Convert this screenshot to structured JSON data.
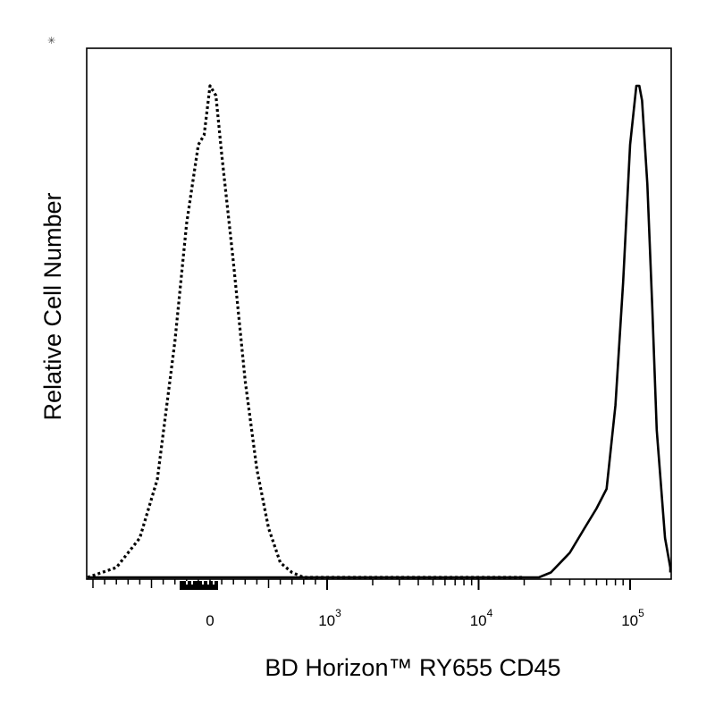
{
  "chart_data": {
    "type": "line",
    "title": "",
    "xlabel": "BD Horizon™ RY655 CD45",
    "ylabel": "Relative Cell Number",
    "x_scale": "biexponential",
    "x_ticks": [
      {
        "value": 0,
        "base": "0",
        "exp": ""
      },
      {
        "value": 1000,
        "base": "10",
        "exp": "3"
      },
      {
        "value": 10000,
        "base": "10",
        "exp": "4"
      },
      {
        "value": 100000,
        "base": "10",
        "exp": "5"
      }
    ],
    "xlim": [
      -1400,
      260000
    ],
    "ylim": [
      0,
      1
    ],
    "grid": false,
    "legend": "none",
    "series": [
      {
        "style": "dotted",
        "x": [
          -1050,
          -800,
          -600,
          -450,
          -300,
          -200,
          -100,
          -50,
          0,
          50,
          100,
          200,
          300,
          400,
          500,
          600,
          700,
          800,
          1000,
          2000,
          5000,
          10000,
          20000
        ],
        "y": [
          0.0,
          0.02,
          0.08,
          0.2,
          0.48,
          0.72,
          0.88,
          0.9,
          1.0,
          0.98,
          0.86,
          0.64,
          0.4,
          0.22,
          0.1,
          0.03,
          0.01,
          0.0,
          0.0,
          0.0,
          0.0,
          0.0,
          0.0
        ]
      },
      {
        "style": "solid",
        "x": [
          -1400,
          0,
          1000,
          10000,
          25000,
          30000,
          40000,
          50000,
          60000,
          70000,
          80000,
          90000,
          100000,
          110000,
          115000,
          120000,
          130000,
          140000,
          150000,
          170000,
          200000,
          240000
        ],
        "y": [
          0.0,
          0.0,
          0.0,
          0.0,
          0.0,
          0.01,
          0.05,
          0.1,
          0.14,
          0.18,
          0.35,
          0.6,
          0.88,
          1.0,
          1.0,
          0.97,
          0.8,
          0.55,
          0.3,
          0.08,
          0.02,
          0.01
        ]
      }
    ],
    "colors": {
      "line": "#000000"
    }
  },
  "corner_mark": "✳"
}
